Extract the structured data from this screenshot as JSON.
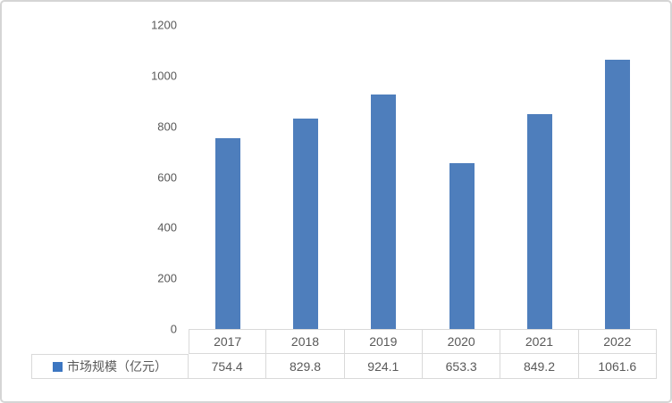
{
  "chart_data": {
    "type": "bar",
    "title": "",
    "xlabel": "",
    "ylabel": "",
    "categories": [
      "2017",
      "2018",
      "2019",
      "2020",
      "2021",
      "2022"
    ],
    "series": [
      {
        "name": "市场规模（亿元）",
        "values": [
          754.4,
          829.8,
          924.1,
          653.3,
          849.2,
          1061.6
        ],
        "value_labels": [
          "754.4",
          "829.8",
          "924.1",
          "653.3",
          "849.2",
          "1061.6"
        ]
      }
    ],
    "ylim": [
      0,
      1200
    ],
    "yticks": [
      0,
      200,
      400,
      600,
      800,
      1000,
      1200
    ],
    "grid": false,
    "legend_position": "data-table-left-of-series-row",
    "data_table_below_axis": true
  },
  "colors": {
    "bar_fill": "#4E7EBC",
    "legend_marker": "#3C76C1",
    "table_border": "#d9d9d9",
    "text": "#595959",
    "frame_border": "#d5d5d5",
    "background": "#ffffff"
  }
}
